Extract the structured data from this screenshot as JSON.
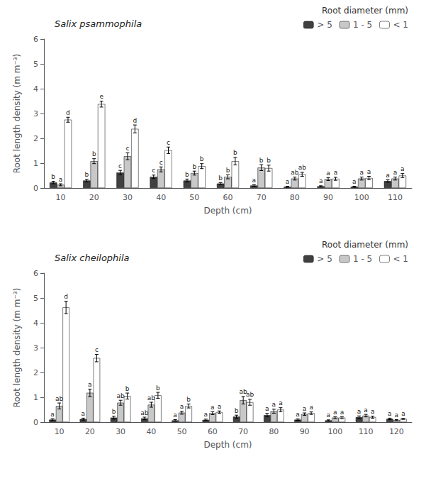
{
  "chart_data": [
    {
      "type": "bar",
      "title": "Salix psammophila",
      "categories": [
        "10",
        "20",
        "30",
        "40",
        "50",
        "60",
        "70",
        "80",
        "90",
        "100",
        "110"
      ],
      "series": [
        {
          "name": "> 5",
          "color": "#404040",
          "values": [
            0.22,
            0.3,
            0.62,
            0.45,
            0.3,
            0.18,
            0.1,
            0.05,
            0.07,
            0.05,
            0.28
          ],
          "errors": [
            0.05,
            0.05,
            0.09,
            0.07,
            0.06,
            0.04,
            0.03,
            0.02,
            0.02,
            0.02,
            0.05
          ],
          "annotations": [
            "b",
            "b",
            "c",
            "c",
            "b",
            "b",
            "a",
            "a",
            "a",
            "a",
            "a"
          ]
        },
        {
          "name": "1 - 5",
          "color": "#c8c8c8",
          "values": [
            0.13,
            1.08,
            1.28,
            0.75,
            0.6,
            0.45,
            0.82,
            0.38,
            0.36,
            0.38,
            0.38
          ],
          "errors": [
            0.04,
            0.1,
            0.14,
            0.1,
            0.08,
            0.08,
            0.12,
            0.06,
            0.06,
            0.06,
            0.06
          ],
          "annotations": [
            "a",
            "b",
            "c",
            "c",
            "b",
            "b",
            "b",
            "ab",
            "a",
            "a",
            "a"
          ]
        },
        {
          "name": "< 1",
          "color": "#ffffff",
          "values": [
            2.75,
            3.38,
            2.38,
            1.52,
            0.88,
            1.08,
            0.8,
            0.55,
            0.37,
            0.4,
            0.5
          ],
          "errors": [
            0.1,
            0.12,
            0.16,
            0.13,
            0.1,
            0.15,
            0.12,
            0.08,
            0.06,
            0.07,
            0.08
          ],
          "annotations": [
            "d",
            "e",
            "d",
            "c",
            "b",
            "b",
            "b",
            "ab",
            "a",
            "a",
            "a"
          ]
        }
      ],
      "xlabel": "Depth (cm)",
      "ylabel": "Root length density (m m⁻³)",
      "ylim": [
        0,
        6
      ],
      "yticks": [
        0,
        1,
        2,
        3,
        4,
        5,
        6
      ],
      "grid": false,
      "legend": "upper right",
      "legend_title": "Root diameter (mm)"
    },
    {
      "type": "bar",
      "title": "Salix cheilophila",
      "categories": [
        "10",
        "20",
        "30",
        "40",
        "50",
        "60",
        "70",
        "80",
        "90",
        "100",
        "110",
        "120"
      ],
      "series": [
        {
          "name": "> 5",
          "color": "#404040",
          "values": [
            0.1,
            0.12,
            0.18,
            0.15,
            0.07,
            0.09,
            0.22,
            0.28,
            0.1,
            0.07,
            0.2,
            0.13
          ],
          "errors": [
            0.04,
            0.04,
            0.06,
            0.05,
            0.03,
            0.03,
            0.06,
            0.07,
            0.03,
            0.02,
            0.05,
            0.03
          ],
          "annotations": [
            "a",
            "a",
            "b",
            "ab",
            "a",
            "a",
            "b",
            "a",
            "a",
            "a",
            "a",
            "a"
          ]
        },
        {
          "name": "1 - 5",
          "color": "#c8c8c8",
          "values": [
            0.65,
            1.18,
            0.78,
            0.7,
            0.38,
            0.36,
            0.88,
            0.44,
            0.32,
            0.18,
            0.26,
            0.08
          ],
          "errors": [
            0.12,
            0.15,
            0.1,
            0.1,
            0.06,
            0.06,
            0.15,
            0.08,
            0.05,
            0.04,
            0.05,
            0.02
          ],
          "annotations": [
            "ab",
            "a",
            "ab",
            "ab",
            "a",
            "a",
            "ab",
            "a",
            "a",
            "a",
            "a",
            "a"
          ]
        },
        {
          "name": "< 1",
          "color": "#ffffff",
          "values": [
            4.62,
            2.58,
            1.05,
            1.08,
            0.65,
            0.4,
            0.8,
            0.5,
            0.36,
            0.18,
            0.2,
            0.13
          ],
          "errors": [
            0.25,
            0.15,
            0.12,
            0.12,
            0.08,
            0.05,
            0.12,
            0.08,
            0.05,
            0.04,
            0.04,
            0.02
          ],
          "annotations": [
            "d",
            "c",
            "b",
            "b",
            "b",
            "a",
            "ab",
            "a",
            "a",
            "a",
            "a",
            "a"
          ]
        }
      ],
      "xlabel": "Depth (cm)",
      "ylabel": "Root length density (m m⁻³)",
      "ylim": [
        0,
        6
      ],
      "yticks": [
        0,
        1,
        2,
        3,
        4,
        5,
        6
      ],
      "grid": false,
      "legend": "upper right",
      "legend_title": "Root diameter (mm)"
    }
  ]
}
